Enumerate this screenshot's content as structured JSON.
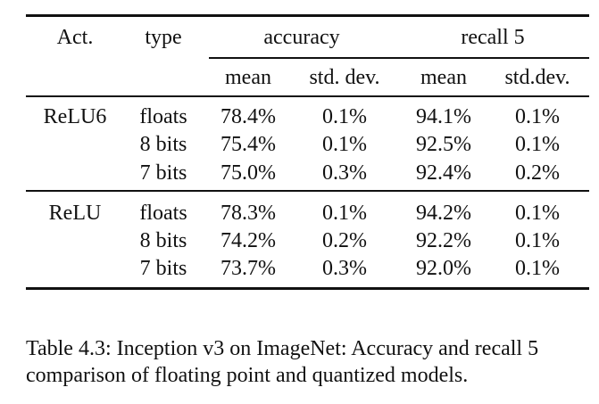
{
  "table": {
    "headers": {
      "act": "Act.",
      "type": "type",
      "accuracy": "accuracy",
      "recall": "recall 5",
      "acc_mean": "mean",
      "acc_std": "std. dev.",
      "rec_mean": "mean",
      "rec_std": "std.dev."
    },
    "rows": [
      {
        "act": "ReLU6",
        "type": "floats",
        "acc_mean": "78.4%",
        "acc_std": "0.1%",
        "rec_mean": "94.1%",
        "rec_std": "0.1%"
      },
      {
        "act": "",
        "type": "8 bits",
        "acc_mean": "75.4%",
        "acc_std": "0.1%",
        "rec_mean": "92.5%",
        "rec_std": "0.1%"
      },
      {
        "act": "",
        "type": "7 bits",
        "acc_mean": "75.0%",
        "acc_std": "0.3%",
        "rec_mean": "92.4%",
        "rec_std": "0.2%"
      },
      {
        "act": "ReLU",
        "type": "floats",
        "acc_mean": "78.3%",
        "acc_std": "0.1%",
        "rec_mean": "94.2%",
        "rec_std": "0.1%"
      },
      {
        "act": "",
        "type": "8 bits",
        "acc_mean": "74.2%",
        "acc_std": "0.2%",
        "rec_mean": "92.2%",
        "rec_std": "0.1%"
      },
      {
        "act": "",
        "type": "7 bits",
        "acc_mean": "73.7%",
        "acc_std": "0.3%",
        "rec_mean": "92.0%",
        "rec_std": "0.1%"
      }
    ]
  },
  "caption": "Table 4.3: Inception v3 on ImageNet: Accuracy and recall 5 comparison of floating point and quantized models."
}
